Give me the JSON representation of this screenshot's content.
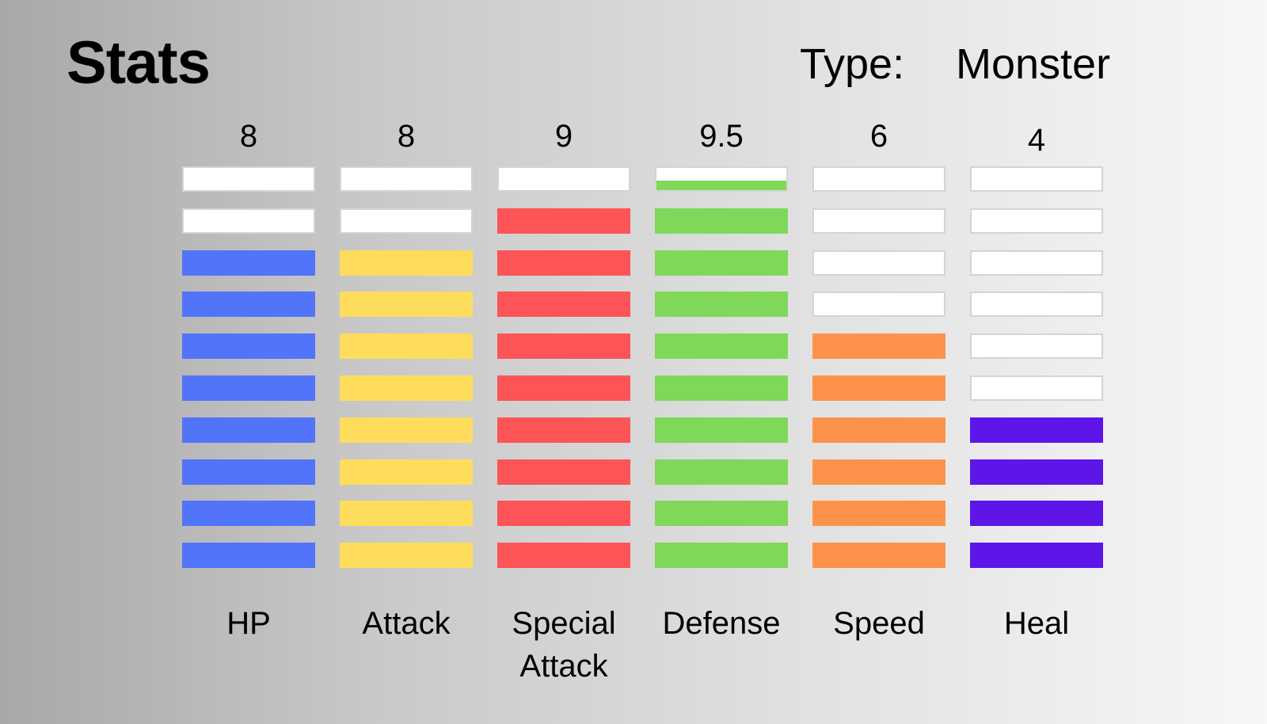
{
  "header": {
    "title": "Stats",
    "type_label": "Type:",
    "type_value": "Monster"
  },
  "chart_data": {
    "type": "bar",
    "max": 10,
    "categories": [
      "HP",
      "Attack",
      "Special Attack",
      "Defense",
      "Speed",
      "Heal"
    ],
    "values": [
      8,
      8,
      9,
      9.5,
      6,
      4
    ],
    "value_labels": [
      "8",
      "8",
      "9",
      "9.5",
      "6",
      "4"
    ],
    "colors": [
      "#5274f9",
      "#fedc5c",
      "#fd5457",
      "#80d85a",
      "#fd934a",
      "#5d15e8"
    ],
    "empty_color": "#ffffff"
  }
}
